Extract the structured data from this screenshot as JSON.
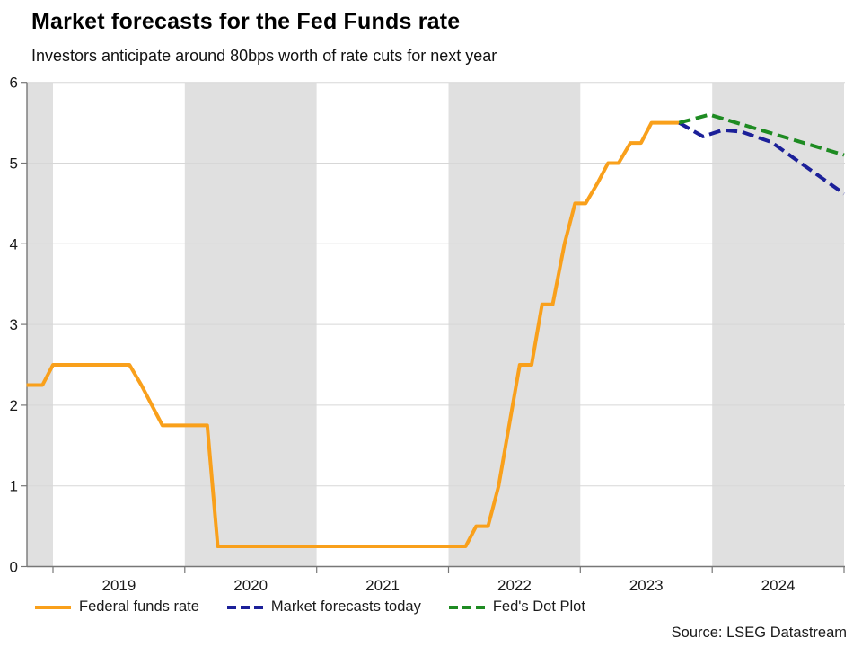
{
  "chart_data": {
    "type": "line",
    "title": "Market forecasts for the Fed Funds rate",
    "subtitle": "Investors anticipate around 80bps worth of rate cuts for next year",
    "source": "Source: LSEG Datastream",
    "ylim": [
      0,
      6
    ],
    "yticks": [
      0,
      1,
      2,
      3,
      4,
      5,
      6
    ],
    "xlim": [
      2018.8,
      2025.0
    ],
    "xtick_boundaries": [
      2019,
      2020,
      2021,
      2022,
      2023,
      2024,
      2025
    ],
    "xtick_year_labels": [
      "2019",
      "2020",
      "2021",
      "2022",
      "2023",
      "2024"
    ],
    "shaded_bands": [
      [
        2018.8,
        2019
      ],
      [
        2020,
        2021
      ],
      [
        2022,
        2023
      ],
      [
        2024,
        2025
      ]
    ],
    "band_color": "#e0e0e0",
    "gridline_color": "#d7d7d7",
    "axis_color": "#777777",
    "tick_label_color": "#1a1a1a",
    "legend_position": "bottom",
    "grid": "horizontal",
    "series": [
      {
        "name": "Federal funds rate",
        "color": "#f9a01b",
        "style": "solid",
        "points": [
          [
            2018.8,
            2.25
          ],
          [
            2018.92,
            2.25
          ],
          [
            2019.0,
            2.5
          ],
          [
            2019.58,
            2.5
          ],
          [
            2019.67,
            2.25
          ],
          [
            2019.75,
            2.0
          ],
          [
            2019.83,
            1.75
          ],
          [
            2020.17,
            1.75
          ],
          [
            2020.25,
            0.25
          ],
          [
            2022.13,
            0.25
          ],
          [
            2022.21,
            0.5
          ],
          [
            2022.3,
            0.5
          ],
          [
            2022.38,
            1.0
          ],
          [
            2022.46,
            1.75
          ],
          [
            2022.54,
            2.5
          ],
          [
            2022.63,
            2.5
          ],
          [
            2022.71,
            3.25
          ],
          [
            2022.79,
            3.25
          ],
          [
            2022.88,
            4.0
          ],
          [
            2022.96,
            4.5
          ],
          [
            2023.04,
            4.5
          ],
          [
            2023.13,
            4.75
          ],
          [
            2023.21,
            5.0
          ],
          [
            2023.29,
            5.0
          ],
          [
            2023.38,
            5.25
          ],
          [
            2023.46,
            5.25
          ],
          [
            2023.54,
            5.5
          ],
          [
            2023.75,
            5.5
          ]
        ]
      },
      {
        "name": "Market forecasts today",
        "color": "#1c2099",
        "style": "dashed",
        "points": [
          [
            2023.75,
            5.5
          ],
          [
            2023.93,
            5.33
          ],
          [
            2024.08,
            5.41
          ],
          [
            2024.22,
            5.39
          ],
          [
            2024.45,
            5.26
          ],
          [
            2024.62,
            5.06
          ],
          [
            2025.0,
            4.62
          ]
        ]
      },
      {
        "name": "Fed's Dot Plot",
        "color": "#1e8b22",
        "style": "dashed",
        "points": [
          [
            2023.75,
            5.5
          ],
          [
            2023.98,
            5.6
          ],
          [
            2025.0,
            5.1
          ]
        ]
      }
    ]
  }
}
